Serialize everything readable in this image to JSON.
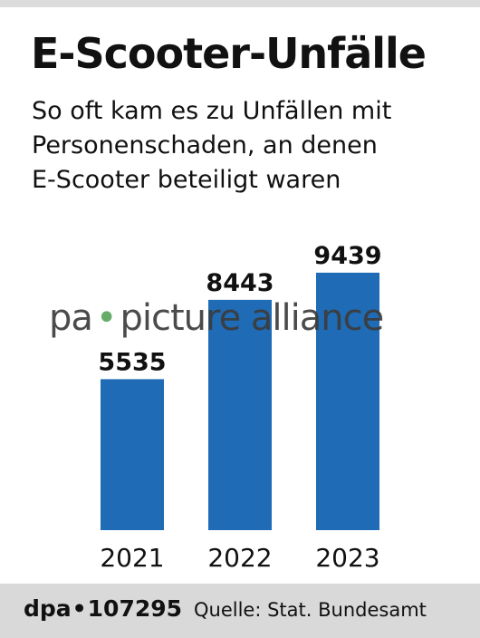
{
  "header": {
    "title": "E-Scooter-Unfälle",
    "subtitle_lines": [
      "So oft kam es zu Unfällen mit",
      "Personenschaden, an denen",
      "E-Scooter beteiligt waren"
    ]
  },
  "watermark": {
    "left": "pa",
    "right": "picture alliance"
  },
  "colors": {
    "bar": "#1f6bb5",
    "watermark_dot": "#58a55c",
    "footer_bg": "#d9d9d9"
  },
  "chart_data": {
    "type": "bar",
    "title": "E-Scooter-Unfälle",
    "subtitle": "So oft kam es zu Unfällen mit Personenschaden, an denen E-Scooter beteiligt waren",
    "categories": [
      "2021",
      "2022",
      "2023"
    ],
    "values": [
      5535,
      8443,
      9439
    ],
    "data_labels": [
      "5535",
      "8443",
      "9439"
    ],
    "xlabel": "",
    "ylabel": "",
    "ylim": [
      0,
      10000
    ],
    "grid": false,
    "legend": "none"
  },
  "footer": {
    "agency": "dpa",
    "graphic_id": "107295",
    "source": "Quelle: Stat. Bundesamt"
  }
}
